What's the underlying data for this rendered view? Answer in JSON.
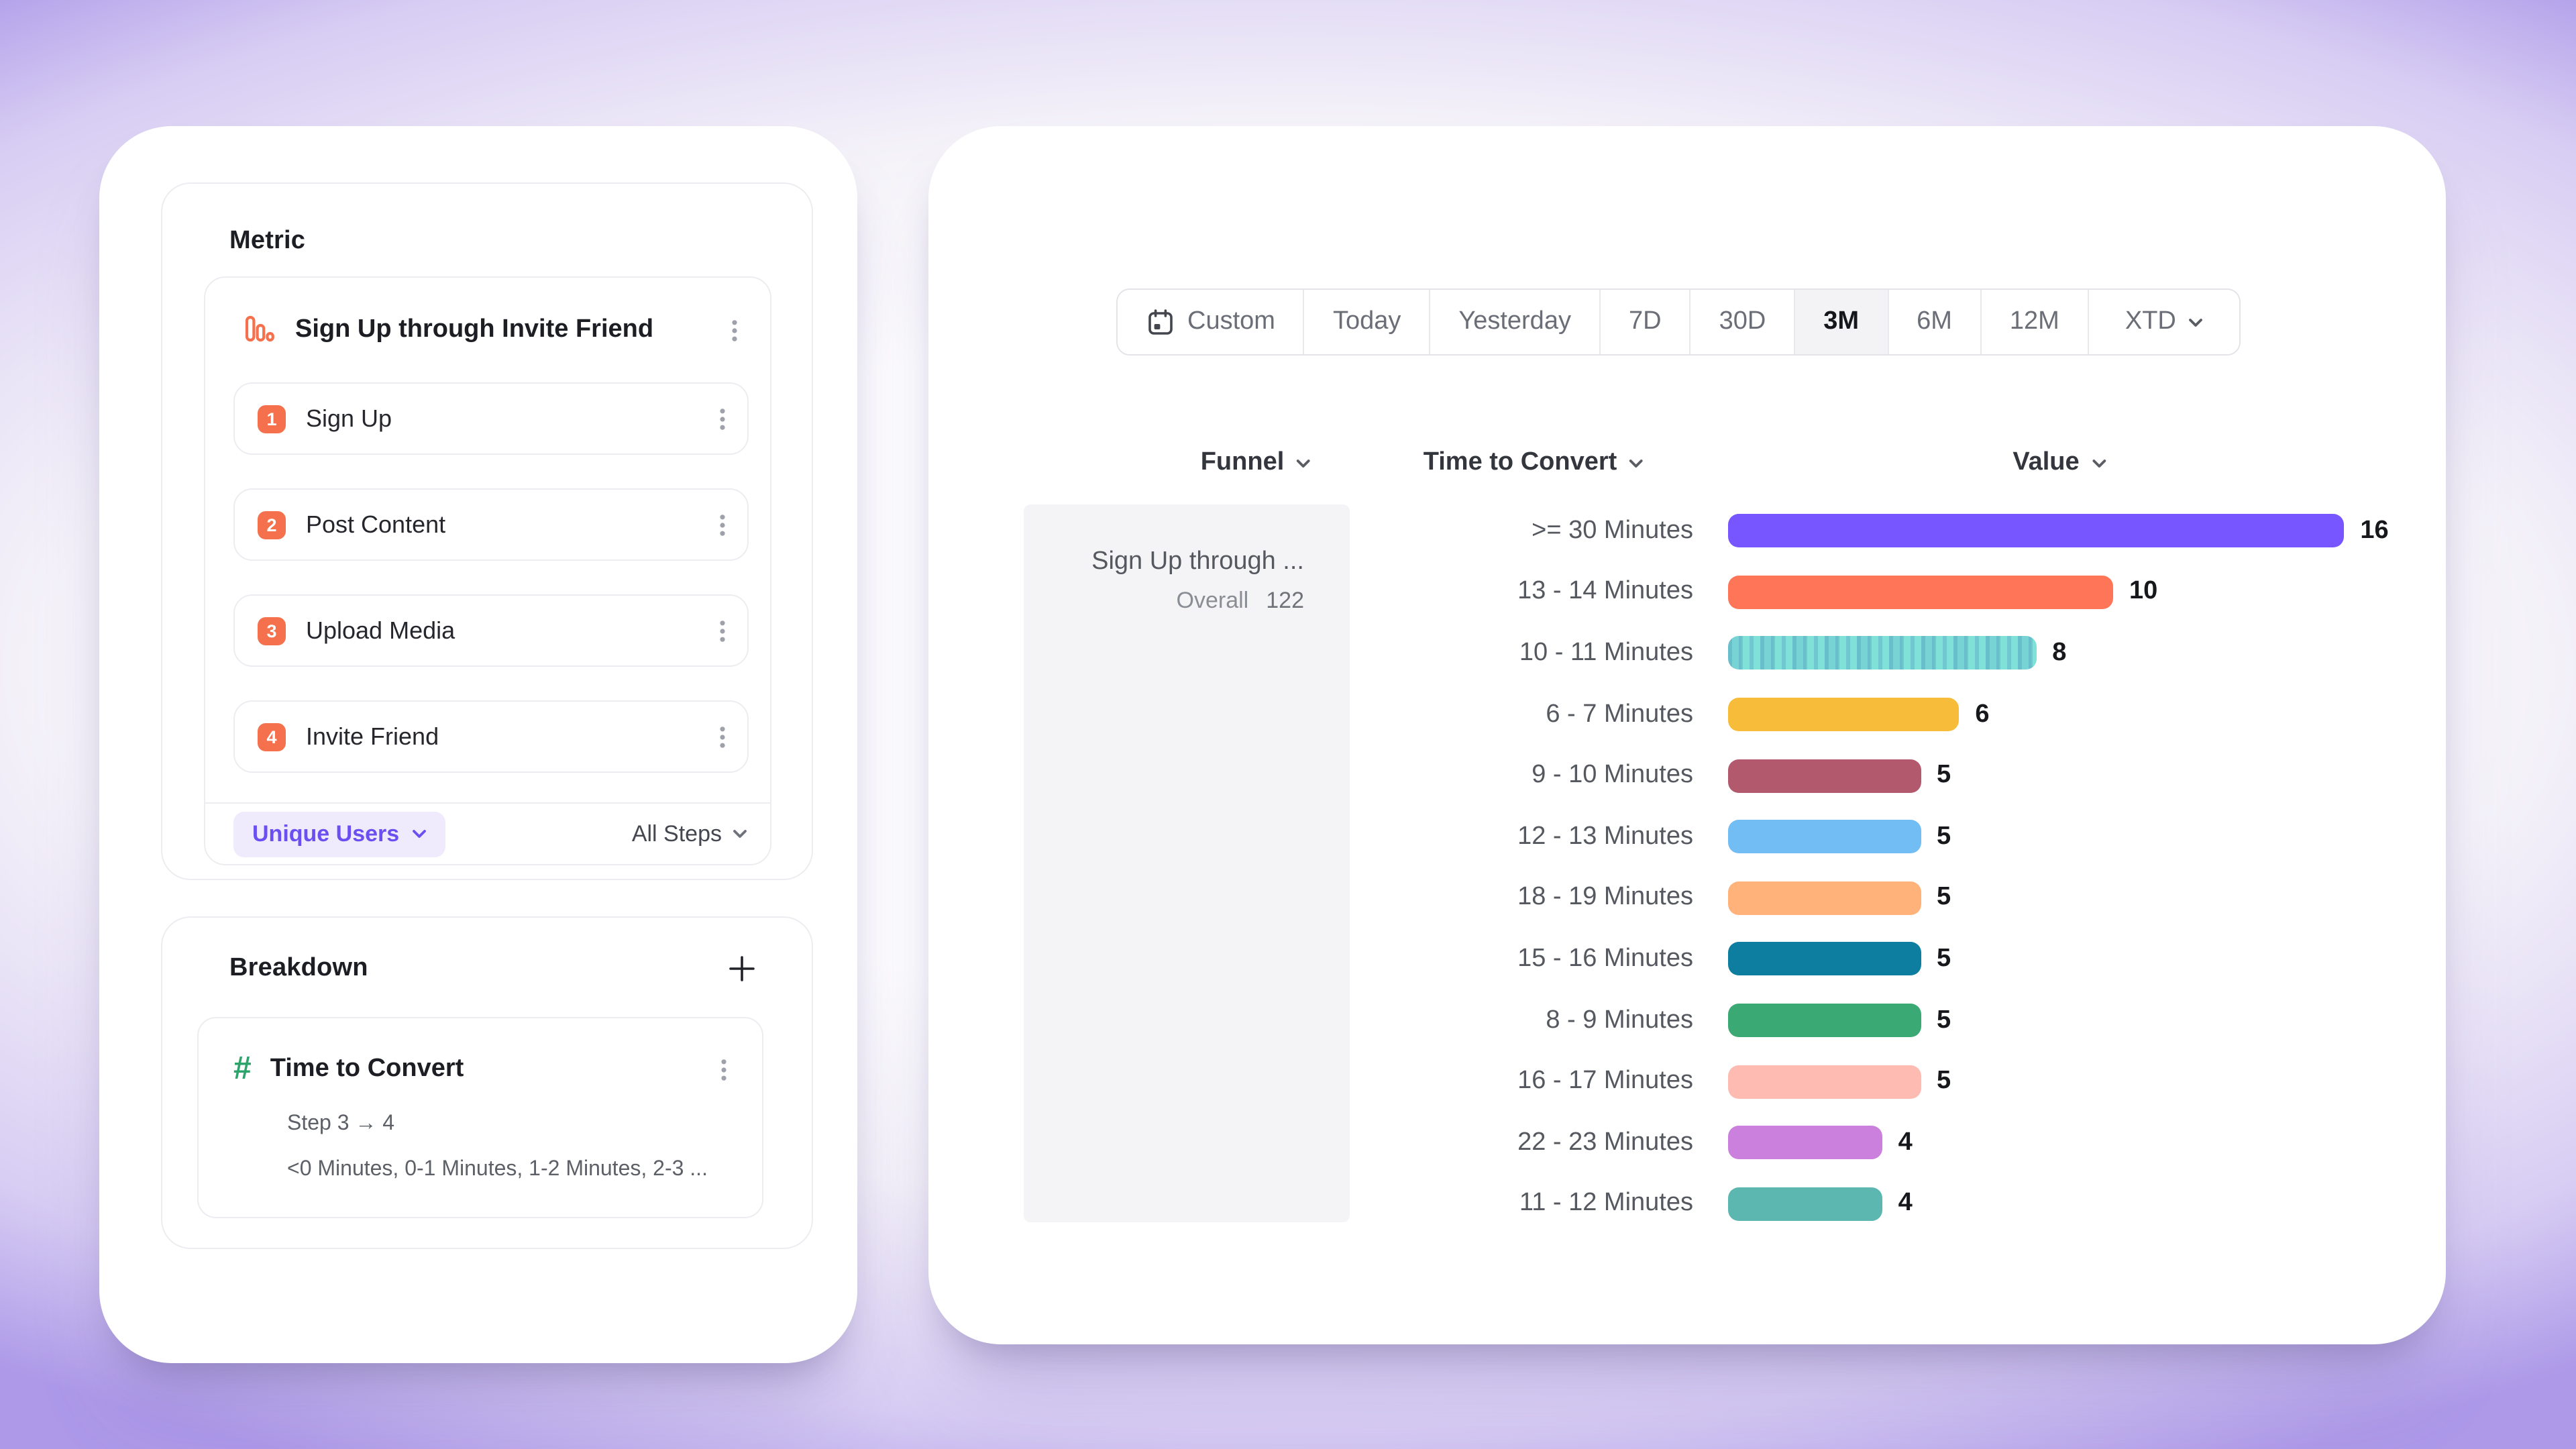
{
  "metric_panel": {
    "title": "Metric",
    "group_title": "Sign Up through Invite Friend",
    "steps": [
      {
        "num": "1",
        "label": "Sign Up"
      },
      {
        "num": "2",
        "label": "Post Content"
      },
      {
        "num": "3",
        "label": "Upload Media"
      },
      {
        "num": "4",
        "label": "Invite Friend"
      }
    ],
    "counting_method": "Unique Users",
    "steps_scope": "All Steps"
  },
  "breakdown_panel": {
    "title": "Breakdown",
    "property_name": "Time to Convert",
    "step_range": "Step 3 → 4",
    "buckets_preview": "<0 Minutes, 0-1 Minutes, 1-2 Minutes, 2-3 ..."
  },
  "date_picker": {
    "selected": "3M",
    "items": [
      {
        "label": "Custom"
      },
      {
        "label": "Today"
      },
      {
        "label": "Yesterday"
      },
      {
        "label": "7D"
      },
      {
        "label": "30D"
      },
      {
        "label": "3M"
      },
      {
        "label": "6M"
      },
      {
        "label": "12M"
      },
      {
        "label": "XTD"
      }
    ]
  },
  "table": {
    "col_funnel": "Funnel",
    "col_time_to_convert": "Time to Convert",
    "col_value": "Value",
    "funnel_cell": {
      "name": "Sign Up through ...",
      "overall_label": "Overall",
      "overall_value": "122"
    }
  },
  "chart_data": {
    "type": "bar",
    "orientation": "horizontal",
    "title": "",
    "xlabel": "Value",
    "ylabel": "Time to Convert",
    "xlim": [
      0,
      16
    ],
    "grid": false,
    "legend": false,
    "categories": [
      ">= 30 Minutes",
      "13 - 14 Minutes",
      "10 - 11 Minutes",
      "6 - 7 Minutes",
      "9 - 10 Minutes",
      "12 - 13 Minutes",
      "18 - 19 Minutes",
      "15 - 16 Minutes",
      "8 - 9 Minutes",
      "16 - 17 Minutes",
      "22 - 23 Minutes",
      "11 - 12 Minutes"
    ],
    "values": [
      16,
      10,
      8,
      6,
      5,
      5,
      5,
      5,
      5,
      5,
      4,
      4
    ],
    "colors": [
      "#7856FF",
      "#FF7557",
      "#80E1D9",
      "#F8BC3B",
      "#B2596E",
      "#72BEF4",
      "#FFB27A",
      "#0D7EA0",
      "#3BA974",
      "#FEBBB2",
      "#CA80DC",
      "#5BB7AF"
    ],
    "striped_index": 2,
    "overall": 122
  }
}
